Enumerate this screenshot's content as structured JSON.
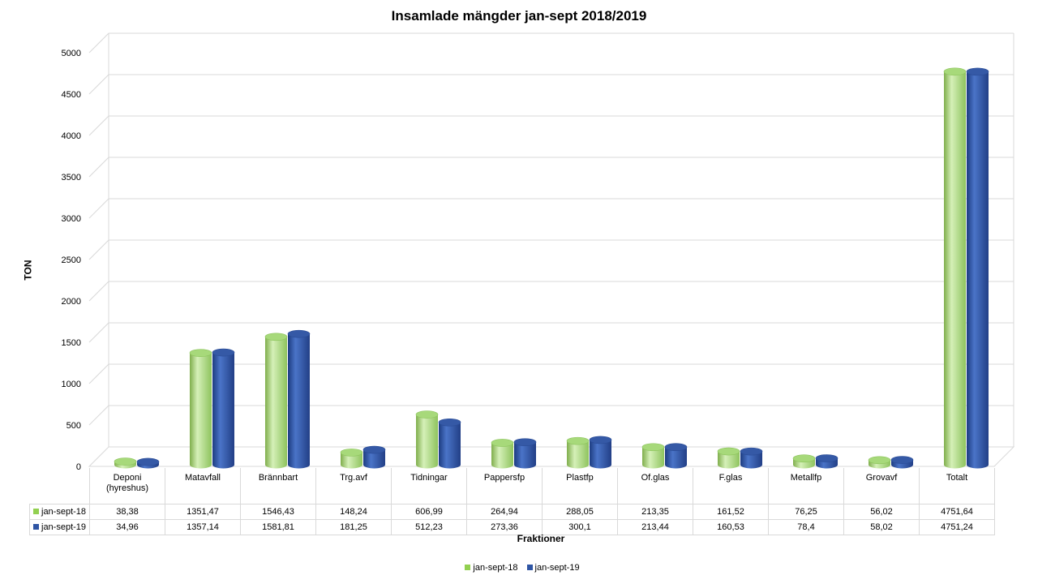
{
  "chart_data": {
    "type": "bar",
    "title": "Insamlade mängder jan-sept 2018/2019",
    "xlabel": "Fraktioner",
    "ylabel": "TON",
    "ylim": [
      0,
      5000
    ],
    "yticks": [
      "0",
      "500",
      "1000",
      "1500",
      "2000",
      "2500",
      "3000",
      "3500",
      "4000",
      "4500",
      "5000"
    ],
    "grid": true,
    "legend_position": "bottom",
    "categories": [
      [
        "Deponi",
        "(hyreshus)"
      ],
      [
        "Matavfall"
      ],
      [
        "Brännbart"
      ],
      [
        "Trg.avf"
      ],
      [
        "Tidningar"
      ],
      [
        "Pappersfp"
      ],
      [
        "Plastfp"
      ],
      [
        "Of.glas"
      ],
      [
        "F.glas"
      ],
      [
        "Metallfp"
      ],
      [
        "Grovavf"
      ],
      [
        "Totalt"
      ]
    ],
    "series": [
      {
        "name": "jan-sept-18",
        "color": "#92d050",
        "values": [
          38.38,
          1351.47,
          1546.43,
          148.24,
          606.99,
          264.94,
          288.05,
          213.35,
          161.52,
          76.25,
          56.02,
          4751.64
        ],
        "labels": [
          "38,38",
          "1351,47",
          "1546,43",
          "148,24",
          "606,99",
          "264,94",
          "288,05",
          "213,35",
          "161,52",
          "76,25",
          "56,02",
          "4751,64"
        ]
      },
      {
        "name": "jan-sept-19",
        "color": "#2f55a4",
        "values": [
          34.96,
          1357.14,
          1581.81,
          181.25,
          512.23,
          273.36,
          300.1,
          213.44,
          160.53,
          78.4,
          58.02,
          4751.24
        ],
        "labels": [
          "34,96",
          "1357,14",
          "1581,81",
          "181,25",
          "512,23",
          "273,36",
          "300,1",
          "213,44",
          "160,53",
          "78,4",
          "58,02",
          "4751,24"
        ]
      }
    ]
  }
}
